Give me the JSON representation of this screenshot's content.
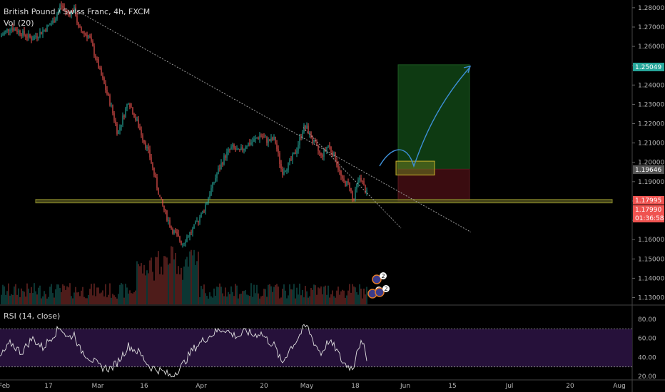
{
  "header": {
    "symbol_title": "British Pound / Swiss Franc, 4h, FXCM",
    "volume_label": "Vol (20)"
  },
  "rsi_panel": {
    "label": "RSI (14, close)"
  },
  "colors": {
    "up": "#26a69a",
    "down": "#ef5350",
    "support_zone": "#8a8a2a",
    "profit_zone": "#0e3a12",
    "loss_zone": "#3a0c10",
    "rsi_band": "#2a1340",
    "rsi_line": "#e0e0e0",
    "projection_arrow": "#3d8fd6",
    "entry_box": "#6c7a20"
  },
  "chart_data": {
    "type": "candlestick",
    "title": "British Pound / Swiss Franc, 4h, FXCM",
    "y_axis": {
      "ticks": [
        "1.28000",
        "1.27000",
        "1.26000",
        "1.25000",
        "1.24000",
        "1.23000",
        "1.22000",
        "1.21000",
        "1.20000",
        "1.19000",
        "1.18000",
        "1.17000",
        "1.16000",
        "1.15000",
        "1.14000",
        "1.13000"
      ],
      "range": [
        1.1265,
        1.284
      ]
    },
    "x_axis": {
      "ticks": [
        "Feb",
        "17",
        "Mar",
        "16",
        "Apr",
        "20",
        "May",
        "18",
        "Jun",
        "15",
        "Jul",
        "20",
        "Aug"
      ]
    },
    "price_tags": [
      {
        "label": "1.25049",
        "value": 1.25049,
        "color": "#26a69a"
      },
      {
        "label": "1.19646",
        "value": 1.19646,
        "color": "#555555"
      },
      {
        "label": "1.17995",
        "value": 1.17995,
        "color": "#ef5350"
      },
      {
        "label": "1.17990",
        "value": 1.1799,
        "color": "#ef5350"
      },
      {
        "label": "01:36:58",
        "value": null,
        "color": "#ef5350"
      }
    ],
    "price_path": [
      [
        0,
        1.265
      ],
      [
        3,
        1.27
      ],
      [
        6,
        1.267
      ],
      [
        9,
        1.264
      ],
      [
        12,
        1.268
      ],
      [
        15,
        1.273
      ],
      [
        17,
        1.2815
      ],
      [
        19,
        1.277
      ],
      [
        21,
        1.279
      ],
      [
        22,
        1.269
      ],
      [
        25,
        1.265
      ],
      [
        28,
        1.247
      ],
      [
        31,
        1.23
      ],
      [
        33,
        1.215
      ],
      [
        36,
        1.232
      ],
      [
        39,
        1.218
      ],
      [
        42,
        1.203
      ],
      [
        45,
        1.18
      ],
      [
        48,
        1.166
      ],
      [
        51,
        1.158
      ],
      [
        54,
        1.165
      ],
      [
        57,
        1.175
      ],
      [
        59,
        1.185
      ],
      [
        61,
        1.195
      ],
      [
        63,
        1.203
      ],
      [
        65,
        1.208
      ],
      [
        67,
        1.205
      ],
      [
        69,
        1.209
      ],
      [
        71,
        1.211
      ],
      [
        73,
        1.214
      ],
      [
        75,
        1.211
      ],
      [
        77,
        1.212
      ],
      [
        79,
        1.195
      ],
      [
        81,
        1.199
      ],
      [
        83,
        1.206
      ],
      [
        85,
        1.218
      ],
      [
        86,
        1.2175
      ],
      [
        88,
        1.21
      ],
      [
        90,
        1.203
      ],
      [
        92,
        1.209
      ],
      [
        94,
        1.202
      ],
      [
        96,
        1.19
      ],
      [
        98,
        1.188
      ],
      [
        99,
        1.179
      ],
      [
        100,
        1.188
      ],
      [
        101,
        1.193
      ],
      [
        102,
        1.187
      ],
      [
        103,
        1.183
      ]
    ],
    "support_zone": {
      "from": 1.179,
      "to": 1.1808
    },
    "trendlines": [
      {
        "name": "long-term",
        "points": [
          [
            21,
            1.279
          ],
          [
            102,
            1.195
          ]
        ]
      },
      {
        "name": "short-term",
        "points": [
          [
            85,
            1.218
          ],
          [
            105,
            1.18
          ]
        ]
      }
    ],
    "position": {
      "entry": 1.19646,
      "target": 1.25049,
      "stop": 1.17995
    },
    "volume": {
      "panel": "bottom of price pane"
    },
    "rsi": {
      "upper": 70,
      "lower": 30,
      "ticks": [
        "80.00",
        "60.00",
        "40.00",
        "20.00"
      ],
      "points": [
        [
          0,
          40
        ],
        [
          3,
          55
        ],
        [
          6,
          45
        ],
        [
          9,
          60
        ],
        [
          12,
          50
        ],
        [
          15,
          64
        ],
        [
          17,
          72
        ],
        [
          19,
          60
        ],
        [
          21,
          65
        ],
        [
          22,
          50
        ],
        [
          25,
          40
        ],
        [
          28,
          30
        ],
        [
          31,
          28
        ],
        [
          33,
          35
        ],
        [
          36,
          52
        ],
        [
          39,
          45
        ],
        [
          42,
          30
        ],
        [
          45,
          26
        ],
        [
          48,
          20
        ],
        [
          51,
          31
        ],
        [
          54,
          48
        ],
        [
          57,
          58
        ],
        [
          59,
          63
        ],
        [
          61,
          68
        ],
        [
          63,
          70
        ],
        [
          65,
          64
        ],
        [
          67,
          62
        ],
        [
          69,
          68
        ],
        [
          71,
          63
        ],
        [
          73,
          66
        ],
        [
          75,
          58
        ],
        [
          77,
          52
        ],
        [
          79,
          33
        ],
        [
          81,
          48
        ],
        [
          83,
          57
        ],
        [
          85,
          70
        ],
        [
          86,
          73
        ],
        [
          88,
          56
        ],
        [
          90,
          44
        ],
        [
          92,
          57
        ],
        [
          94,
          50
        ],
        [
          96,
          35
        ],
        [
          98,
          30
        ],
        [
          99,
          28
        ],
        [
          100,
          48
        ],
        [
          101,
          55
        ],
        [
          102,
          50
        ],
        [
          103,
          38
        ]
      ]
    }
  }
}
